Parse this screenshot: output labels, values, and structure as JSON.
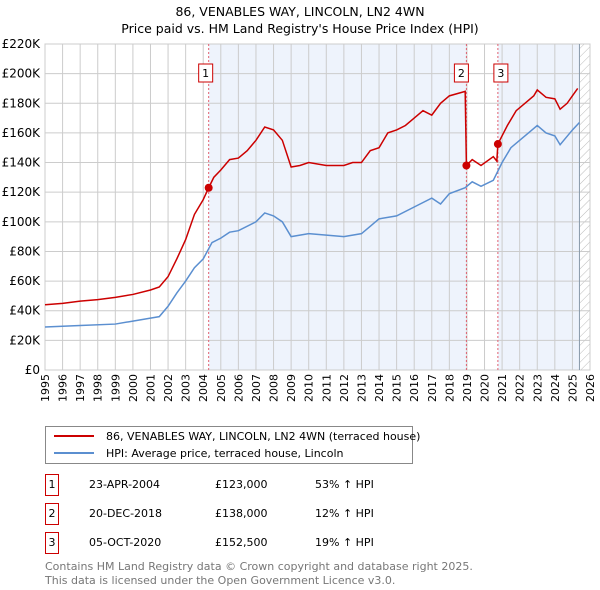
{
  "title_line1": "86, VENABLES WAY, LINCOLN, LN2 4WN",
  "title_line2": "Price paid vs. HM Land Registry's House Price Index (HPI)",
  "chart_data": {
    "type": "line",
    "xlim": [
      1995,
      2026
    ],
    "ylim": [
      0,
      220000
    ],
    "x_ticks": [
      "1995",
      "1996",
      "1997",
      "1998",
      "1999",
      "2000",
      "2001",
      "2002",
      "2003",
      "2004",
      "2005",
      "2006",
      "2007",
      "2008",
      "2009",
      "2010",
      "2011",
      "2012",
      "2013",
      "2014",
      "2015",
      "2016",
      "2017",
      "2018",
      "2019",
      "2020",
      "2021",
      "2022",
      "2023",
      "2024",
      "2025",
      "2026"
    ],
    "y_ticks": [
      {
        "v": 0,
        "label": "£0"
      },
      {
        "v": 20000,
        "label": "£20K"
      },
      {
        "v": 40000,
        "label": "£40K"
      },
      {
        "v": 60000,
        "label": "£60K"
      },
      {
        "v": 80000,
        "label": "£80K"
      },
      {
        "v": 100000,
        "label": "£100K"
      },
      {
        "v": 120000,
        "label": "£120K"
      },
      {
        "v": 140000,
        "label": "£140K"
      },
      {
        "v": 160000,
        "label": "£160K"
      },
      {
        "v": 180000,
        "label": "£180K"
      },
      {
        "v": 200000,
        "label": "£200K"
      },
      {
        "v": 220000,
        "label": "£220K"
      }
    ],
    "grid": true,
    "series": [
      {
        "name": "86, VENABLES WAY, LINCOLN, LN2 4WN (terraced house)",
        "color": "#cc0000",
        "points": [
          [
            1995,
            44000
          ],
          [
            1996,
            45000
          ],
          [
            1997,
            46500
          ],
          [
            1998,
            47500
          ],
          [
            1999,
            49000
          ],
          [
            2000,
            51000
          ],
          [
            2001,
            54000
          ],
          [
            2001.5,
            56000
          ],
          [
            2002,
            63000
          ],
          [
            2002.5,
            75000
          ],
          [
            2003,
            88000
          ],
          [
            2003.5,
            105000
          ],
          [
            2004,
            115000
          ],
          [
            2004.31,
            123000
          ],
          [
            2004.6,
            130000
          ],
          [
            2005,
            135000
          ],
          [
            2005.5,
            142000
          ],
          [
            2006,
            143000
          ],
          [
            2006.5,
            148000
          ],
          [
            2007,
            155000
          ],
          [
            2007.5,
            164000
          ],
          [
            2008,
            162000
          ],
          [
            2008.5,
            155000
          ],
          [
            2009,
            137000
          ],
          [
            2009.5,
            138000
          ],
          [
            2010,
            140000
          ],
          [
            2011,
            138000
          ],
          [
            2012,
            138000
          ],
          [
            2012.5,
            140000
          ],
          [
            2013,
            140000
          ],
          [
            2013.5,
            148000
          ],
          [
            2014,
            150000
          ],
          [
            2014.5,
            160000
          ],
          [
            2015,
            162000
          ],
          [
            2015.5,
            165000
          ],
          [
            2016,
            170000
          ],
          [
            2016.5,
            175000
          ],
          [
            2017,
            172000
          ],
          [
            2017.5,
            180000
          ],
          [
            2018,
            185000
          ],
          [
            2018.9,
            188000
          ],
          [
            2018.97,
            138000
          ],
          [
            2019.3,
            142000
          ],
          [
            2019.8,
            138000
          ],
          [
            2020.5,
            144000
          ],
          [
            2020.7,
            141000
          ],
          [
            2020.76,
            152500
          ],
          [
            2021.3,
            165000
          ],
          [
            2021.8,
            175000
          ],
          [
            2022.3,
            180000
          ],
          [
            2022.8,
            185000
          ],
          [
            2023,
            189000
          ],
          [
            2023.5,
            184000
          ],
          [
            2024,
            183000
          ],
          [
            2024.3,
            176000
          ],
          [
            2024.7,
            180000
          ],
          [
            2025,
            185000
          ],
          [
            2025.3,
            190000
          ]
        ]
      },
      {
        "name": "HPI: Average price, terraced house, Lincoln",
        "color": "#5b8fd0",
        "points": [
          [
            1995,
            29000
          ],
          [
            1997,
            30000
          ],
          [
            1999,
            31000
          ],
          [
            2000,
            33000
          ],
          [
            2001,
            35000
          ],
          [
            2001.5,
            36000
          ],
          [
            2002,
            43000
          ],
          [
            2002.5,
            52000
          ],
          [
            2003,
            60000
          ],
          [
            2003.5,
            69000
          ],
          [
            2004,
            75000
          ],
          [
            2004.5,
            86000
          ],
          [
            2005,
            89000
          ],
          [
            2005.5,
            93000
          ],
          [
            2006,
            94000
          ],
          [
            2007,
            100000
          ],
          [
            2007.5,
            106000
          ],
          [
            2008,
            104000
          ],
          [
            2008.5,
            100000
          ],
          [
            2009,
            90000
          ],
          [
            2010,
            92000
          ],
          [
            2011,
            91000
          ],
          [
            2012,
            90000
          ],
          [
            2013,
            92000
          ],
          [
            2013.5,
            97000
          ],
          [
            2014,
            102000
          ],
          [
            2015,
            104000
          ],
          [
            2016,
            110000
          ],
          [
            2017,
            116000
          ],
          [
            2017.5,
            112000
          ],
          [
            2018,
            119000
          ],
          [
            2018.9,
            123000
          ],
          [
            2019.3,
            127000
          ],
          [
            2019.8,
            124000
          ],
          [
            2020.5,
            128000
          ],
          [
            2021,
            140000
          ],
          [
            2021.5,
            150000
          ],
          [
            2022,
            155000
          ],
          [
            2022.5,
            160000
          ],
          [
            2023,
            165000
          ],
          [
            2023.5,
            160000
          ],
          [
            2024,
            158000
          ],
          [
            2024.3,
            152000
          ],
          [
            2025,
            162000
          ],
          [
            2025.4,
            167000
          ]
        ]
      }
    ],
    "sales": [
      {
        "id": "1",
        "x": 2004.31,
        "y": 123000
      },
      {
        "id": "2",
        "x": 2018.97,
        "y": 138000
      },
      {
        "id": "3",
        "x": 2020.76,
        "y": 152500
      }
    ],
    "forecast_start": 2025.4
  },
  "legend": {
    "property": "86, VENABLES WAY, LINCOLN, LN2 4WN (terraced house)",
    "hpi": "HPI: Average price, terraced house, Lincoln"
  },
  "transactions": [
    {
      "num": "1",
      "date": "23-APR-2004",
      "price": "£123,000",
      "hpi": "53% ↑ HPI"
    },
    {
      "num": "2",
      "date": "20-DEC-2018",
      "price": "£138,000",
      "hpi": "12% ↑ HPI"
    },
    {
      "num": "3",
      "date": "05-OCT-2020",
      "price": "£152,500",
      "hpi": "19% ↑ HPI"
    }
  ],
  "footer": {
    "line1": "Contains HM Land Registry data © Crown copyright and database right 2025.",
    "line2": "This data is licensed under the Open Government Licence v3.0."
  }
}
